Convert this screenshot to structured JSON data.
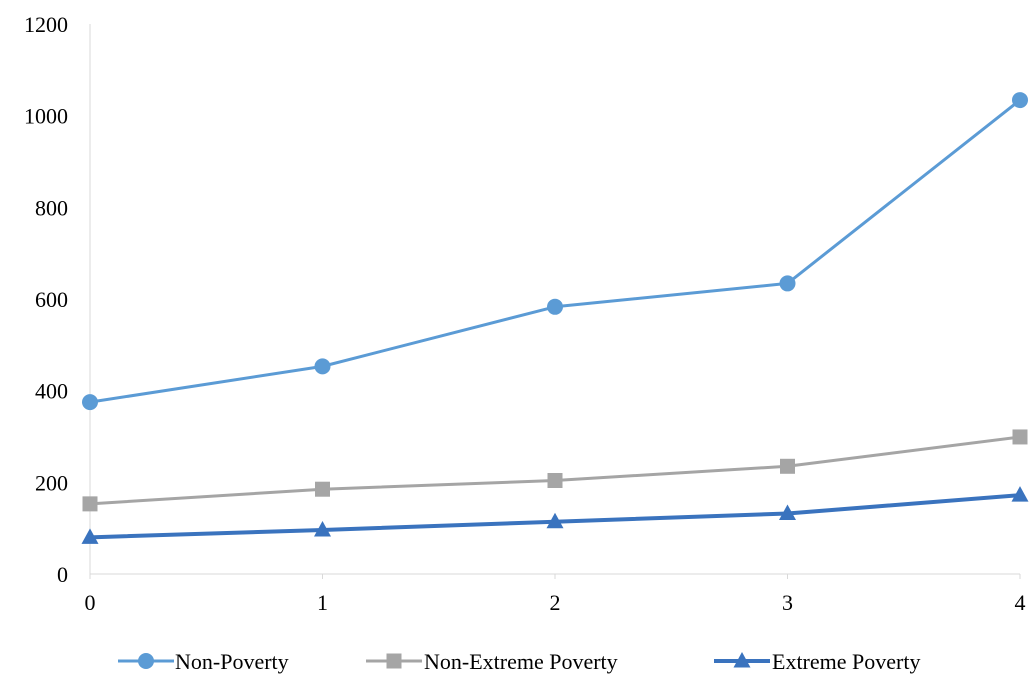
{
  "chart_data": {
    "type": "line",
    "title": "",
    "xlabel": "",
    "ylabel": "",
    "x": [
      0,
      1,
      2,
      3,
      4
    ],
    "x_tick_labels": [
      "0",
      "1",
      "2",
      "3",
      "4"
    ],
    "y_tick_labels": [
      "0",
      "200",
      "400",
      "600",
      "800",
      "1000",
      "1200"
    ],
    "xlim": [
      0,
      4
    ],
    "ylim": [
      0,
      1200
    ],
    "grid": false,
    "legend_position": "bottom",
    "series": [
      {
        "name": "Non-Poverty",
        "values": [
          375,
          453,
          583,
          634,
          1034
        ],
        "color": "#5b9bd5",
        "marker": "circle"
      },
      {
        "name": "Non-Extreme Poverty",
        "values": [
          153,
          185,
          204,
          235,
          299
        ],
        "color": "#a5a5a5",
        "marker": "square"
      },
      {
        "name": "Extreme Poverty",
        "values": [
          80,
          96,
          114,
          132,
          172
        ],
        "color": "#3a73be",
        "marker": "triangle"
      }
    ]
  }
}
